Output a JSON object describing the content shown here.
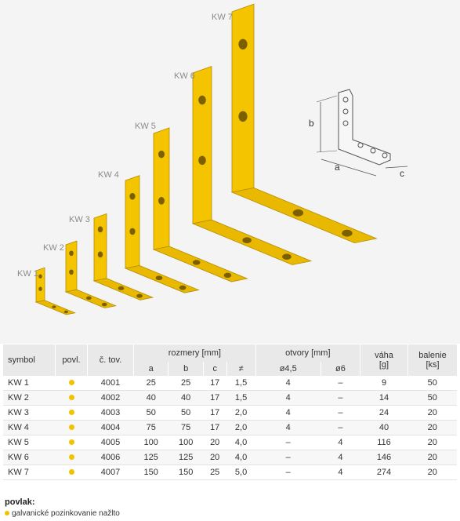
{
  "illustration": {
    "labels": [
      "KW 1",
      "KW 2",
      "KW 3",
      "KW 4",
      "KW 5",
      "KW 6",
      "KW 7"
    ],
    "dimension_labels": {
      "a": "a",
      "b": "b",
      "c": "c"
    },
    "colors": {
      "bracket": "#f5c400",
      "bracket_edge": "#b58e00",
      "background": "#f4f4f4"
    }
  },
  "table": {
    "headers": {
      "symbol": "symbol",
      "coating": "povl.",
      "item_no": "č. tov.",
      "dimensions": "rozmery [mm]",
      "holes": "otvory [mm]",
      "weight": "váha\n[g]",
      "package": "balenie\n[ks]",
      "a": "a",
      "b": "b",
      "c": "c",
      "thickness": "≠",
      "h45": "ø4,5",
      "h6": "ø6"
    },
    "rows": [
      {
        "symbol": "KW 1",
        "item": "4001",
        "a": "25",
        "b": "25",
        "c": "17",
        "t": "1,5",
        "h45": "4",
        "h6": "–",
        "weight": "9",
        "pack": "50"
      },
      {
        "symbol": "KW 2",
        "item": "4002",
        "a": "40",
        "b": "40",
        "c": "17",
        "t": "1,5",
        "h45": "4",
        "h6": "–",
        "weight": "14",
        "pack": "50"
      },
      {
        "symbol": "KW 3",
        "item": "4003",
        "a": "50",
        "b": "50",
        "c": "17",
        "t": "2,0",
        "h45": "4",
        "h6": "–",
        "weight": "24",
        "pack": "20"
      },
      {
        "symbol": "KW 4",
        "item": "4004",
        "a": "75",
        "b": "75",
        "c": "17",
        "t": "2,0",
        "h45": "4",
        "h6": "–",
        "weight": "40",
        "pack": "20"
      },
      {
        "symbol": "KW 5",
        "item": "4005",
        "a": "100",
        "b": "100",
        "c": "20",
        "t": "4,0",
        "h45": "–",
        "h6": "4",
        "weight": "116",
        "pack": "20"
      },
      {
        "symbol": "KW 6",
        "item": "4006",
        "a": "125",
        "b": "125",
        "c": "20",
        "t": "4,0",
        "h45": "–",
        "h6": "4",
        "weight": "146",
        "pack": "20"
      },
      {
        "symbol": "KW 7",
        "item": "4007",
        "a": "150",
        "b": "150",
        "c": "25",
        "t": "5,0",
        "h45": "–",
        "h6": "4",
        "weight": "274",
        "pack": "20"
      }
    ],
    "coating_color": "#f2c200"
  },
  "legend": {
    "title": "povlak:",
    "item": "galvanické pozinkovanie nažlto"
  }
}
